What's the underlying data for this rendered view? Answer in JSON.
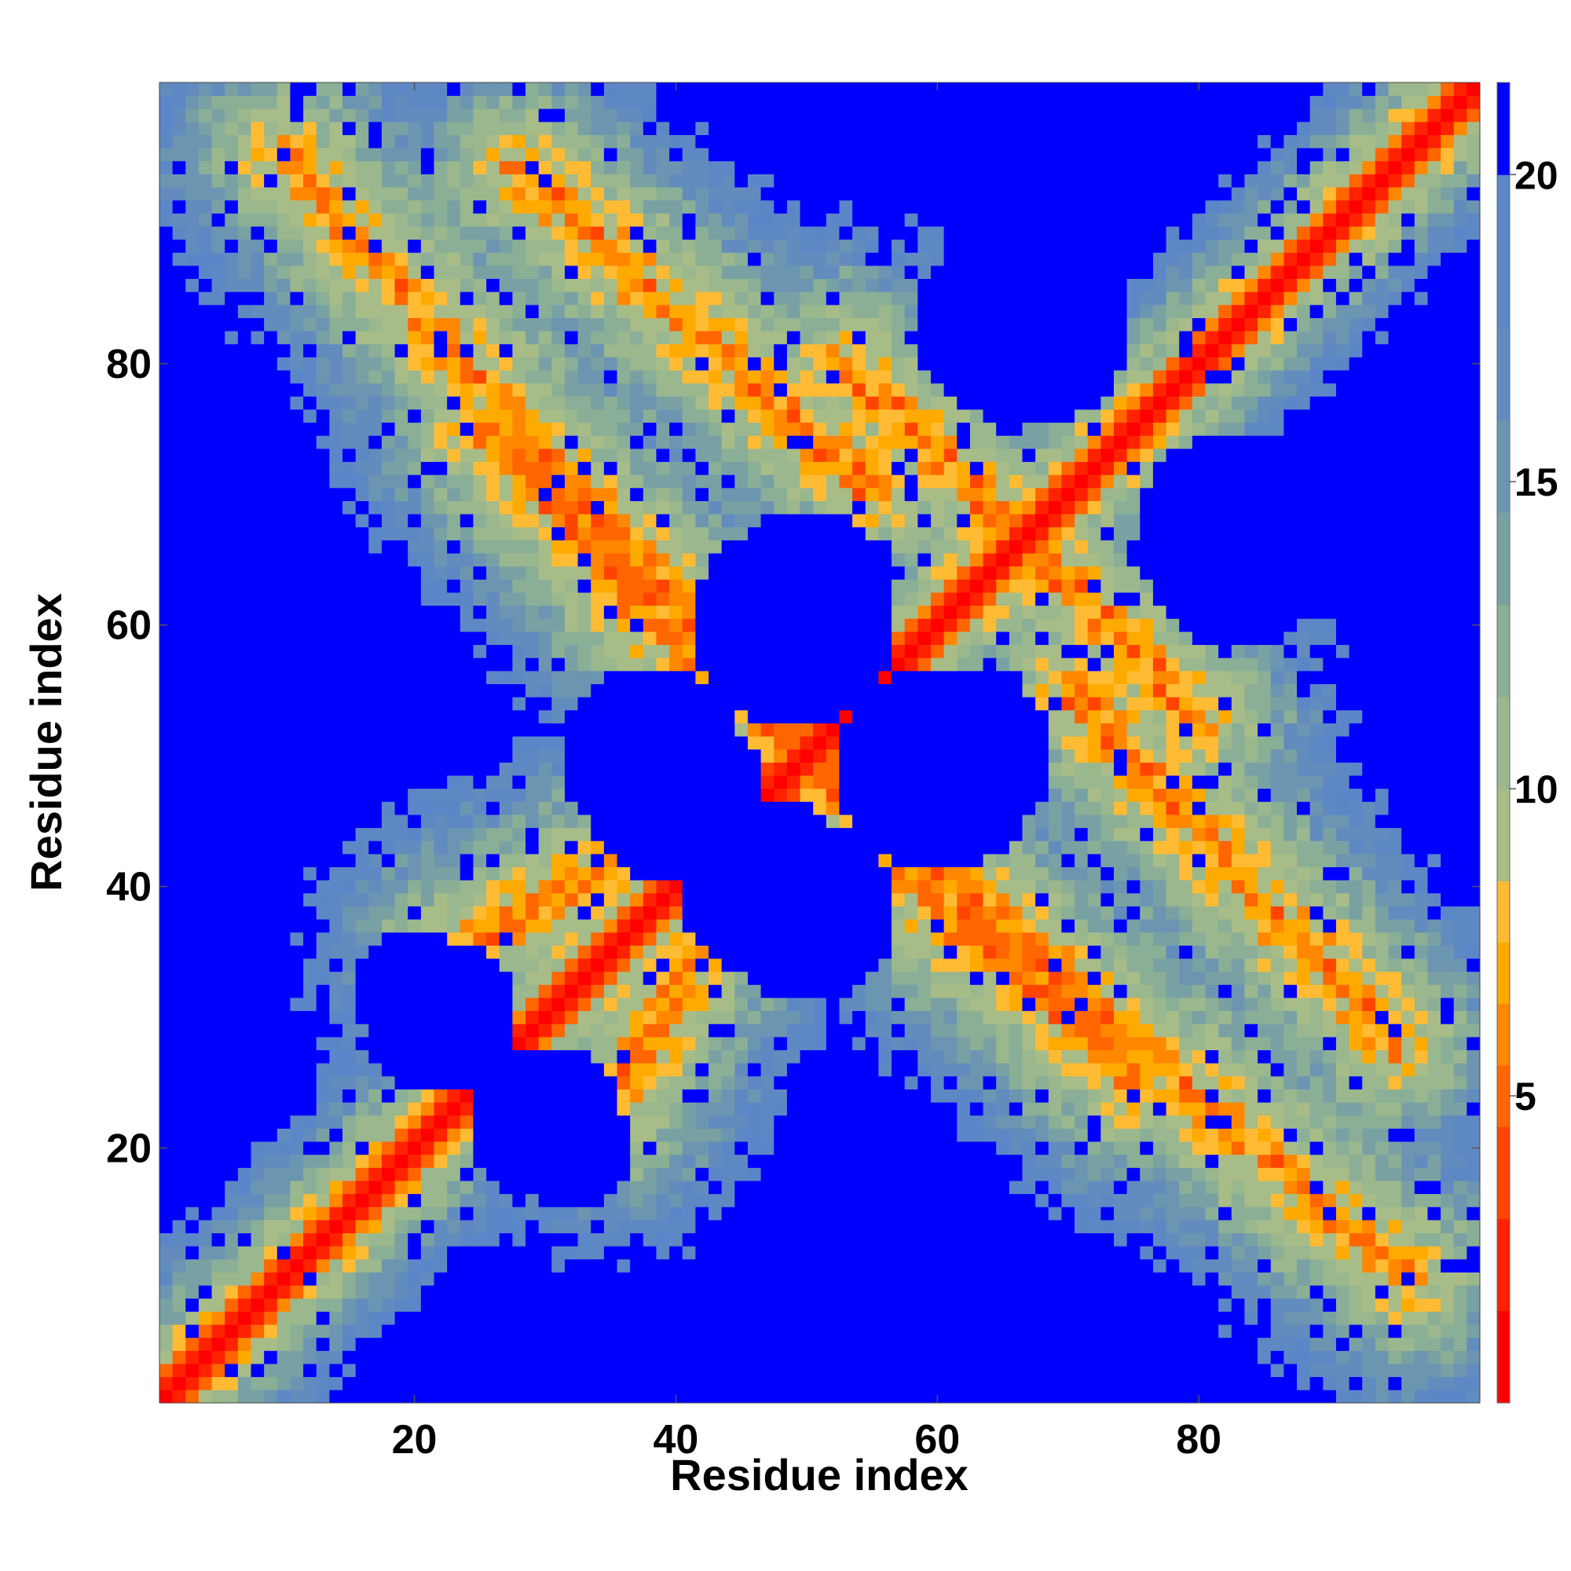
{
  "chart_data": {
    "type": "heatmap",
    "title": "",
    "xlabel": "Residue index",
    "ylabel": "Residue index",
    "n_residues": 101,
    "x_range": [
      1,
      101
    ],
    "y_range": [
      1,
      101
    ],
    "x_ticks": [
      20,
      40,
      60,
      80
    ],
    "y_ticks": [
      20,
      40,
      60,
      80
    ],
    "colorbar": {
      "range": [
        0,
        21.5
      ],
      "ticks": [
        5,
        10,
        15,
        20
      ],
      "cutoff_color": "#0000ff",
      "levels": [
        {
          "to": 1.5,
          "color": "#ff0000"
        },
        {
          "to": 3,
          "color": "#ff2200"
        },
        {
          "to": 4.5,
          "color": "#ff4400"
        },
        {
          "to": 5.5,
          "color": "#ff6600"
        },
        {
          "to": 6.5,
          "color": "#ff8800"
        },
        {
          "to": 7.5,
          "color": "#ffaa00"
        },
        {
          "to": 8.5,
          "color": "#ffbb33"
        },
        {
          "to": 10,
          "color": "#a8bc88"
        },
        {
          "to": 11.5,
          "color": "#9ab78e"
        },
        {
          "to": 13,
          "color": "#8aaf96"
        },
        {
          "to": 14.5,
          "color": "#79a1a4"
        },
        {
          "to": 16,
          "color": "#6c95b1"
        },
        {
          "to": 17.5,
          "color": "#628cbd"
        },
        {
          "to": 19,
          "color": "#5e88c3"
        },
        {
          "to": 20,
          "color": "#5b86c8"
        },
        {
          "to": 21.5,
          "color": "#0000ff"
        }
      ]
    },
    "structure": {
      "description_of_values": "pairwise distance between residues; diagonal band near 0, contact arms ~6-8, halos ~10-20, blue beyond cutoff",
      "anti_diagonal_arms": [
        {
          "from": [
            10,
            96
          ],
          "to": [
            50,
            50
          ]
        },
        {
          "from": [
            50,
            50
          ],
          "to": [
            75,
            25
          ]
        },
        {
          "from": [
            50,
            50
          ],
          "to": [
            30,
            70
          ]
        },
        {
          "from": [
            23,
            35
          ],
          "to": [
            50,
            50
          ]
        },
        {
          "from": [
            70,
            55
          ],
          "to": [
            95,
            28
          ]
        },
        {
          "from": [
            53,
            80
          ],
          "to": [
            66,
            67
          ]
        },
        {
          "from": [
            36,
            62
          ],
          "to": [
            48,
            52
          ]
        }
      ],
      "blue_voids": [
        {
          "center": [
            40,
            47
          ],
          "radius": 7
        },
        {
          "center": [
            60,
            49
          ],
          "radius": 8
        },
        {
          "center": [
            50,
            38
          ],
          "radius": 7
        },
        {
          "center": [
            50,
            62
          ],
          "radius": 7
        },
        {
          "center": [
            65,
            83
          ],
          "radius": 7
        },
        {
          "center": [
            83,
            67
          ],
          "radius": 8
        },
        {
          "center": [
            30,
            22
          ],
          "radius": 6
        },
        {
          "center": [
            20,
            32
          ],
          "radius": 5
        }
      ]
    }
  }
}
